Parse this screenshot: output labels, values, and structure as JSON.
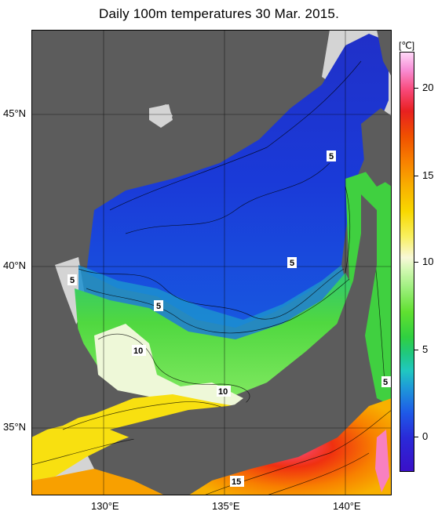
{
  "title": "Daily 100m temperatures 30 Mar. 2015.",
  "colorbar": {
    "unit": "[℃]",
    "ticks": [
      "20",
      "15",
      "10",
      "5",
      "0"
    ]
  },
  "axes": {
    "lat_labels": [
      "45°N",
      "40°N",
      "35°N"
    ],
    "lon_labels": [
      "130°E",
      "135°E",
      "140°E"
    ]
  },
  "contour_labels": [
    "5",
    "5",
    "5",
    "5",
    "10",
    "10",
    "15",
    "5"
  ],
  "colors": {
    "land": "#5c5c5c",
    "no_data": "#d4d4d4",
    "cold": "#2038d0",
    "warm": "#f0a000"
  }
}
